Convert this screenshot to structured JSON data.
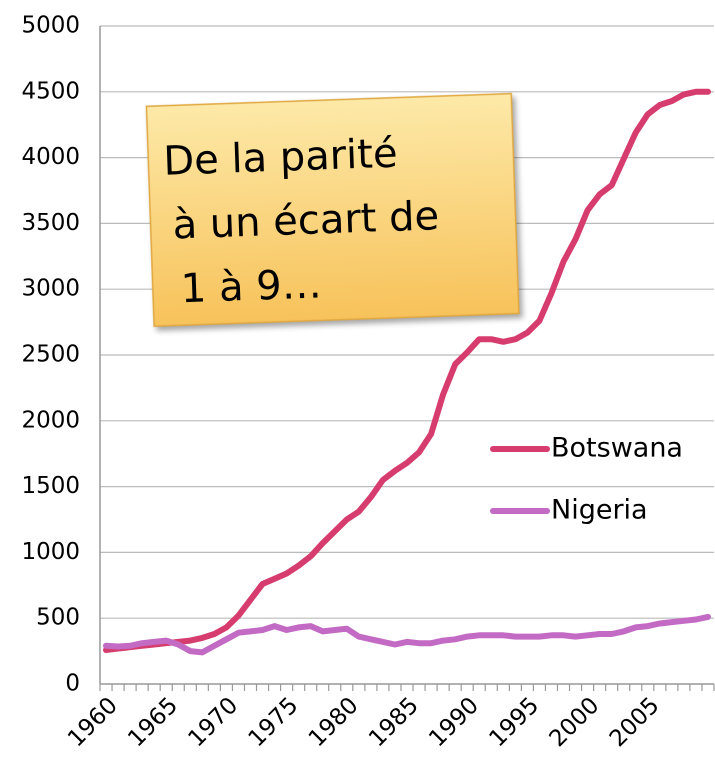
{
  "chart_data": {
    "type": "line",
    "annotation": [
      "De la parité",
      "à un écart de",
      "1 à 9…"
    ],
    "categories": [
      "1960",
      null,
      null,
      null,
      null,
      "1965",
      null,
      null,
      null,
      null,
      "1970",
      null,
      null,
      null,
      null,
      "1975",
      null,
      null,
      null,
      null,
      "1980",
      null,
      null,
      null,
      null,
      "1985",
      null,
      null,
      null,
      null,
      "1990",
      null,
      null,
      null,
      null,
      "1995",
      null,
      null,
      null,
      null,
      "2000",
      null,
      null,
      null,
      null,
      "2005",
      null,
      null,
      null,
      null,
      null
    ],
    "series": [
      {
        "name": "Botswana",
        "color": "#d63d6e",
        "values": [
          258,
          270,
          280,
          290,
          300,
          310,
          320,
          330,
          350,
          380,
          430,
          520,
          640,
          760,
          800,
          840,
          900,
          970,
          1070,
          1160,
          1250,
          1310,
          1420,
          1550,
          1620,
          1680,
          1760,
          1900,
          2200,
          2430,
          2520,
          2620,
          2620,
          2600,
          2620,
          2670,
          2760,
          2970,
          3210,
          3380,
          3600,
          3720,
          3790,
          3990,
          4190,
          4330,
          4400,
          4430,
          4480,
          4500,
          4500
        ]
      },
      {
        "name": "Nigeria",
        "color": "#c36bc4",
        "values": [
          290,
          285,
          290,
          310,
          320,
          330,
          300,
          250,
          240,
          290,
          340,
          390,
          400,
          410,
          440,
          410,
          430,
          440,
          400,
          410,
          420,
          360,
          340,
          320,
          300,
          320,
          310,
          310,
          330,
          340,
          360,
          370,
          370,
          370,
          360,
          360,
          360,
          370,
          370,
          360,
          370,
          380,
          380,
          400,
          430,
          440,
          460,
          470,
          480,
          490,
          510
        ]
      }
    ],
    "ylim": [
      0,
      5000
    ],
    "yticks": [
      0,
      500,
      1000,
      1500,
      2000,
      2500,
      3000,
      3500,
      4000,
      4500,
      5000
    ],
    "grid": true,
    "legend": "right"
  }
}
